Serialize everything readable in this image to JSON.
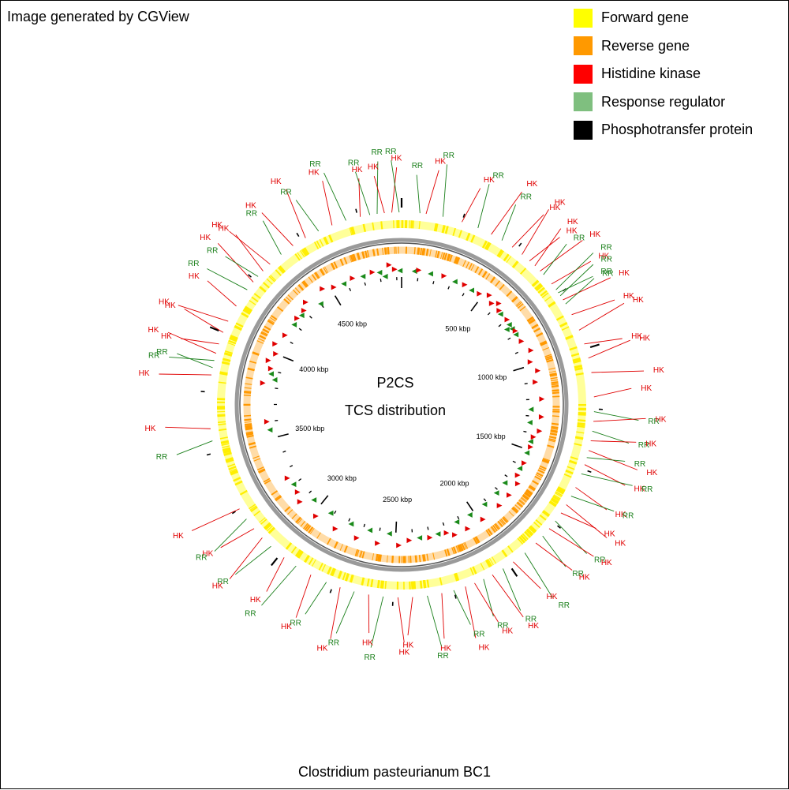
{
  "credit": "Image generated by CGView",
  "footer": "Clostridium pasteurianum BC1",
  "center": {
    "title": "P2CS",
    "subtitle": "TCS distribution"
  },
  "legend": [
    {
      "label": "Forward gene",
      "color": "#ffff00"
    },
    {
      "label": "Reverse gene",
      "color": "#ff9900"
    },
    {
      "label": "Histidine kinase",
      "color": "#ff0000"
    },
    {
      "label": "Response regulator",
      "color": "#7fbf7f"
    },
    {
      "label": "Phosphotransfer protein",
      "color": "#000000"
    }
  ],
  "genome_map": {
    "genome_length_kbp": 4930,
    "tick_labels": [
      {
        "kbp": 500,
        "text": "500 kbp"
      },
      {
        "kbp": 1000,
        "text": "1000 kbp"
      },
      {
        "kbp": 1500,
        "text": "1500 kbp"
      },
      {
        "kbp": 2000,
        "text": "2000 kbp"
      },
      {
        "kbp": 2500,
        "text": "2500 kbp"
      },
      {
        "kbp": 3000,
        "text": "3000 kbp"
      },
      {
        "kbp": 3500,
        "text": "3500 kbp"
      },
      {
        "kbp": 4000,
        "text": "4000 kbp"
      },
      {
        "kbp": 4500,
        "text": "4500 kbp"
      }
    ],
    "features": [
      {
        "kbp": 75,
        "type": "RR"
      },
      {
        "kbp": 100,
        "type": "HK"
      },
      {
        "kbp": 170,
        "type": "RR"
      },
      {
        "kbp": 250,
        "type": "HK"
      },
      {
        "kbp": 320,
        "type": "RR"
      },
      {
        "kbp": 380,
        "type": "HK"
      },
      {
        "kbp": 430,
        "type": "RR"
      },
      {
        "kbp": 480,
        "type": "HK"
      },
      {
        "kbp": 530,
        "type": "HK"
      },
      {
        "kbp": 570,
        "type": "HK"
      },
      {
        "kbp": 600,
        "type": "HK"
      },
      {
        "kbp": 630,
        "type": "HK"
      },
      {
        "kbp": 650,
        "type": "RR"
      },
      {
        "kbp": 700,
        "type": "HK"
      },
      {
        "kbp": 730,
        "type": "RR"
      },
      {
        "kbp": 745,
        "type": "RR"
      },
      {
        "kbp": 760,
        "type": "RR"
      },
      {
        "kbp": 780,
        "type": "HK"
      },
      {
        "kbp": 800,
        "type": "RR"
      },
      {
        "kbp": 850,
        "type": "HK"
      },
      {
        "kbp": 920,
        "type": "HK"
      },
      {
        "kbp": 980,
        "type": "HK"
      },
      {
        "kbp": 1040,
        "type": "HK"
      },
      {
        "kbp": 1100,
        "type": "HK"
      },
      {
        "kbp": 1200,
        "type": "HK"
      },
      {
        "kbp": 1260,
        "type": "RR"
      },
      {
        "kbp": 1300,
        "type": "HK"
      },
      {
        "kbp": 1340,
        "type": "RR"
      },
      {
        "kbp": 1380,
        "type": "HK"
      },
      {
        "kbp": 1420,
        "type": "HK"
      },
      {
        "kbp": 1450,
        "type": "RR"
      },
      {
        "kbp": 1480,
        "type": "HK"
      },
      {
        "kbp": 1520,
        "type": "RR"
      },
      {
        "kbp": 1580,
        "type": "HK"
      },
      {
        "kbp": 1620,
        "type": "RR"
      },
      {
        "kbp": 1660,
        "type": "HK"
      },
      {
        "kbp": 1700,
        "type": "HK"
      },
      {
        "kbp": 1740,
        "type": "RR"
      },
      {
        "kbp": 1780,
        "type": "HK"
      },
      {
        "kbp": 1820,
        "type": "RR"
      },
      {
        "kbp": 1860,
        "type": "HK"
      },
      {
        "kbp": 1920,
        "type": "RR"
      },
      {
        "kbp": 1980,
        "type": "HK"
      },
      {
        "kbp": 2030,
        "type": "RR"
      },
      {
        "kbp": 2080,
        "type": "HK"
      },
      {
        "kbp": 2120,
        "type": "RR"
      },
      {
        "kbp": 2160,
        "type": "HK"
      },
      {
        "kbp": 2200,
        "type": "HK"
      },
      {
        "kbp": 2250,
        "type": "RR"
      },
      {
        "kbp": 2300,
        "type": "HK"
      },
      {
        "kbp": 2360,
        "type": "RR"
      },
      {
        "kbp": 2420,
        "type": "HK"
      },
      {
        "kbp": 2480,
        "type": "HK"
      },
      {
        "kbp": 2540,
        "type": "RR"
      },
      {
        "kbp": 2600,
        "type": "HK"
      },
      {
        "kbp": 2660,
        "type": "RR"
      },
      {
        "kbp": 2720,
        "type": "HK"
      },
      {
        "kbp": 2780,
        "type": "RR"
      },
      {
        "kbp": 2850,
        "type": "HK"
      },
      {
        "kbp": 2920,
        "type": "RR"
      },
      {
        "kbp": 2980,
        "type": "HK"
      },
      {
        "kbp": 3050,
        "type": "RR"
      },
      {
        "kbp": 3100,
        "type": "HK"
      },
      {
        "kbp": 3150,
        "type": "HK"
      },
      {
        "kbp": 3200,
        "type": "RR"
      },
      {
        "kbp": 3250,
        "type": "HK"
      },
      {
        "kbp": 3550,
        "type": "RR"
      },
      {
        "kbp": 3600,
        "type": "HK"
      },
      {
        "kbp": 3820,
        "type": "HK"
      },
      {
        "kbp": 3850,
        "type": "RR"
      },
      {
        "kbp": 3880,
        "type": "RR"
      },
      {
        "kbp": 3910,
        "type": "HK"
      },
      {
        "kbp": 3950,
        "type": "HK"
      },
      {
        "kbp": 4000,
        "type": "HK"
      },
      {
        "kbp": 4050,
        "type": "HK"
      },
      {
        "kbp": 4120,
        "type": "HK"
      },
      {
        "kbp": 4200,
        "type": "RR"
      },
      {
        "kbp": 4240,
        "type": "HK"
      },
      {
        "kbp": 4270,
        "type": "RR"
      },
      {
        "kbp": 4300,
        "type": "HK"
      },
      {
        "kbp": 4340,
        "type": "HK"
      },
      {
        "kbp": 4400,
        "type": "RR"
      },
      {
        "kbp": 4460,
        "type": "HK"
      },
      {
        "kbp": 4520,
        "type": "HK"
      },
      {
        "kbp": 4580,
        "type": "RR"
      },
      {
        "kbp": 4640,
        "type": "HK"
      },
      {
        "kbp": 4700,
        "type": "RR"
      },
      {
        "kbp": 4760,
        "type": "HK"
      },
      {
        "kbp": 4800,
        "type": "RR"
      },
      {
        "kbp": 4830,
        "type": "RR"
      },
      {
        "kbp": 4860,
        "type": "HK"
      },
      {
        "kbp": 4890,
        "type": "HK"
      },
      {
        "kbp": 4920,
        "type": "RR"
      }
    ]
  }
}
